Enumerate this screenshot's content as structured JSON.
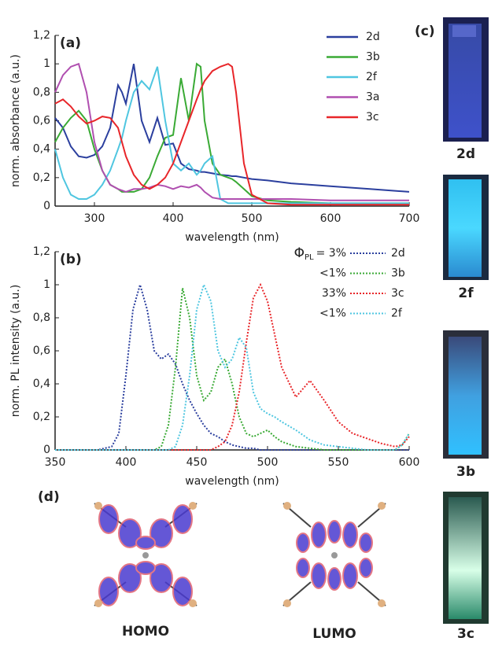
{
  "chart_data": [
    {
      "type": "line",
      "panel_label": "(a)",
      "x_label": "wavelength (nm)",
      "y_label": "norm. absorbance (a.u.)",
      "x": [
        250,
        260,
        270,
        280,
        290,
        300,
        310,
        320,
        330,
        335,
        340,
        350,
        360,
        370,
        380,
        390,
        400,
        410,
        420,
        430,
        435,
        440,
        450,
        460,
        470,
        475,
        480,
        490,
        500,
        520,
        550,
        600,
        650,
        700
      ],
      "series": [
        {
          "name": "2d",
          "color": "#2b3f9e",
          "values": [
            0.62,
            0.55,
            0.42,
            0.35,
            0.34,
            0.36,
            0.42,
            0.55,
            0.85,
            0.8,
            0.72,
            1.0,
            0.6,
            0.45,
            0.62,
            0.43,
            0.44,
            0.3,
            0.26,
            0.25,
            0.24,
            0.24,
            0.23,
            0.22,
            0.215,
            0.21,
            0.21,
            0.2,
            0.19,
            0.18,
            0.16,
            0.14,
            0.12,
            0.1
          ]
        },
        {
          "name": "3b",
          "color": "#3aaa35",
          "values": [
            0.45,
            0.55,
            0.62,
            0.67,
            0.6,
            0.4,
            0.25,
            0.15,
            0.12,
            0.1,
            0.1,
            0.1,
            0.12,
            0.2,
            0.35,
            0.48,
            0.5,
            0.9,
            0.6,
            1.0,
            0.98,
            0.6,
            0.3,
            0.22,
            0.2,
            0.19,
            0.17,
            0.12,
            0.07,
            0.04,
            0.03,
            0.02,
            0.02,
            0.02
          ]
        },
        {
          "name": "2f",
          "color": "#4fc6e0",
          "values": [
            0.4,
            0.2,
            0.08,
            0.05,
            0.05,
            0.08,
            0.15,
            0.25,
            0.4,
            0.48,
            0.6,
            0.8,
            0.88,
            0.82,
            0.98,
            0.6,
            0.3,
            0.25,
            0.3,
            0.22,
            0.25,
            0.3,
            0.35,
            0.05,
            0.02,
            0.02,
            0.02,
            0.02,
            0.02,
            0.02,
            0.02,
            0.02,
            0.02,
            0.02
          ]
        },
        {
          "name": "3a",
          "color": "#b04fb0",
          "values": [
            0.8,
            0.92,
            0.98,
            1.0,
            0.8,
            0.45,
            0.25,
            0.15,
            0.12,
            0.11,
            0.1,
            0.12,
            0.12,
            0.13,
            0.15,
            0.14,
            0.12,
            0.14,
            0.13,
            0.15,
            0.13,
            0.1,
            0.06,
            0.05,
            0.05,
            0.05,
            0.05,
            0.05,
            0.05,
            0.05,
            0.05,
            0.04,
            0.04,
            0.04
          ]
        },
        {
          "name": "3c",
          "color": "#e8262a",
          "values": [
            0.72,
            0.75,
            0.7,
            0.63,
            0.58,
            0.6,
            0.63,
            0.62,
            0.55,
            0.45,
            0.35,
            0.22,
            0.15,
            0.12,
            0.15,
            0.2,
            0.3,
            0.45,
            0.6,
            0.75,
            0.82,
            0.88,
            0.95,
            0.98,
            1.0,
            0.98,
            0.8,
            0.3,
            0.08,
            0.02,
            0.01,
            0.01,
            0.01,
            0.01
          ]
        }
      ],
      "xlim": [
        250,
        700
      ],
      "xticks": [
        300,
        400,
        500,
        600,
        700
      ],
      "ylim": [
        0,
        1.2
      ],
      "yticks": [
        0,
        {
          "value": 0.2,
          "label": "0,2"
        },
        {
          "value": 0.4,
          "label": "0,4"
        },
        {
          "value": 0.6,
          "label": "0,6"
        },
        {
          "value": 0.8,
          "label": "0,8"
        },
        1,
        {
          "value": 1.2,
          "label": "1,2"
        }
      ],
      "dotted": false
    },
    {
      "type": "line",
      "panel_label": "(b)",
      "x_label": "wavelength (nm)",
      "y_label": "norm. PL intensity (a.u.)",
      "yield_symbol": "Φ",
      "yield_subscript": "PL",
      "x": [
        350,
        380,
        390,
        395,
        400,
        405,
        410,
        415,
        420,
        425,
        430,
        435,
        440,
        445,
        450,
        455,
        460,
        465,
        470,
        475,
        480,
        485,
        490,
        495,
        500,
        505,
        510,
        520,
        530,
        540,
        550,
        560,
        570,
        580,
        590,
        595,
        600
      ],
      "series": [
        {
          "name": "2d",
          "yield_label": "= 3%",
          "color": "#2b3f9e",
          "values": [
            0,
            0,
            0.02,
            0.1,
            0.45,
            0.85,
            1.0,
            0.85,
            0.6,
            0.55,
            0.58,
            0.52,
            0.4,
            0.3,
            0.22,
            0.15,
            0.1,
            0.08,
            0.05,
            0.03,
            0.02,
            0.01,
            0.01,
            0,
            0,
            0,
            0,
            0,
            0,
            0,
            0,
            0,
            0,
            0,
            0,
            0,
            0
          ]
        },
        {
          "name": "3b",
          "yield_label": "<1%",
          "color": "#3aaa35",
          "values": [
            0,
            0,
            0,
            0,
            0,
            0,
            0,
            0,
            0,
            0.02,
            0.15,
            0.5,
            0.98,
            0.8,
            0.45,
            0.3,
            0.35,
            0.5,
            0.55,
            0.4,
            0.2,
            0.1,
            0.08,
            0.1,
            0.12,
            0.08,
            0.05,
            0.02,
            0.01,
            0,
            0,
            0,
            0,
            0,
            0,
            0.03,
            0.1
          ]
        },
        {
          "name": "3c",
          "yield_label": "33%",
          "color": "#e8262a",
          "values": [
            0,
            0,
            0,
            0,
            0,
            0,
            0,
            0,
            0,
            0,
            0,
            0,
            0,
            0,
            0,
            0,
            0,
            0.02,
            0.05,
            0.15,
            0.35,
            0.65,
            0.92,
            1.0,
            0.9,
            0.7,
            0.5,
            0.32,
            0.42,
            0.3,
            0.17,
            0.1,
            0.07,
            0.04,
            0.02,
            0.03,
            0.08
          ]
        },
        {
          "name": "2f",
          "yield_label": "<1%",
          "color": "#4fc6e0",
          "values": [
            0,
            0,
            0,
            0,
            0,
            0,
            0,
            0,
            0,
            0,
            0,
            0.02,
            0.15,
            0.45,
            0.85,
            1.0,
            0.9,
            0.6,
            0.5,
            0.55,
            0.68,
            0.62,
            0.35,
            0.25,
            0.22,
            0.2,
            0.17,
            0.12,
            0.06,
            0.03,
            0.02,
            0.01,
            0,
            0,
            0,
            0.03,
            0.1
          ]
        }
      ],
      "xlim": [
        350,
        600
      ],
      "xticks": [
        350,
        400,
        450,
        500,
        550,
        600
      ],
      "ylim": [
        0,
        1.2
      ],
      "yticks": [
        0,
        {
          "value": 0.2,
          "label": "0,2"
        },
        {
          "value": 0.4,
          "label": "0,4"
        },
        {
          "value": 0.6,
          "label": "0,6"
        },
        {
          "value": 0.8,
          "label": "0,8"
        },
        1,
        {
          "value": 1.2,
          "label": "1,2"
        }
      ],
      "dotted": true
    }
  ],
  "photos": {
    "panel_label": "(c)",
    "labels": [
      "2d",
      "2f",
      "3b",
      "3c"
    ]
  },
  "orbitals": {
    "panel_label": "(d)",
    "homo": "HOMO",
    "lumo": "LUMO"
  }
}
